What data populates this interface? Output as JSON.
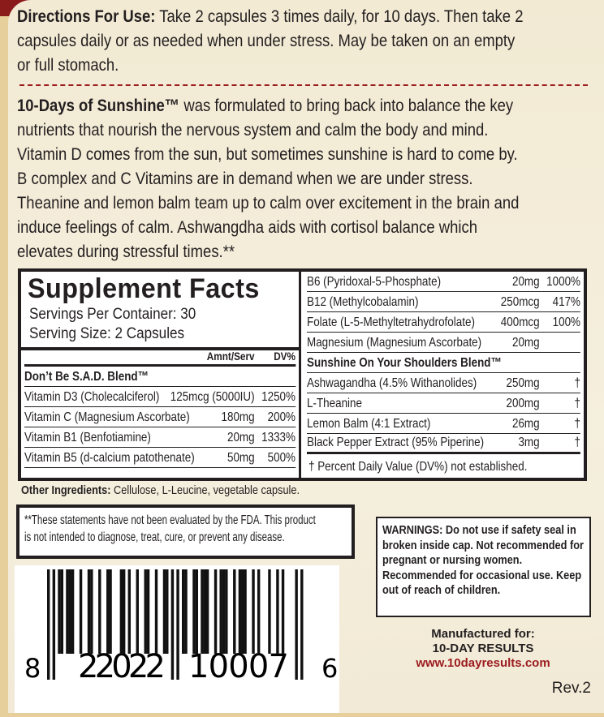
{
  "directions": {
    "label": "Directions For Use:",
    "lines": [
      " Take 2 capsules 3 times daily, for 10 days. Then take 2",
      "capsules daily or as needed when under stress.  May be taken on an empty",
      "or full stomach."
    ]
  },
  "description": {
    "brand": "10-Days of Sunshine™",
    "lines": [
      " was formulated to bring back into balance the key",
      "nutrients that nourish the nervous system and calm the body and mind.",
      "Vitamin D comes from the sun, but sometimes sunshine is hard to come by.",
      "B complex and C Vitamins are in demand when we are under stress.",
      "Theanine and lemon balm team up to calm over excitement in the brain and",
      "induce feelings of calm.  Ashwangdha aids with cortisol balance which",
      "elevates during stressful times.**"
    ]
  },
  "facts": {
    "title": "Supplement Facts",
    "servings": "Servings Per Container: 30",
    "serving_size": "Serving Size: 2 Capsules",
    "col_amount": "Amnt/Serv",
    "col_dv": "DV%",
    "blend1": "Don’t Be S.A.D. Blend™",
    "left_rows": [
      {
        "name": "Vitamin D3 (Cholecalciferol)",
        "amount": "125mcg (5000IU)",
        "dv": "1250%"
      },
      {
        "name": "Vitamin C (Magnesium Ascorbate)",
        "amount": "180mg",
        "dv": "200%"
      },
      {
        "name": "Vitamin B1 (Benfotiamine)",
        "amount": "20mg",
        "dv": "1333%"
      },
      {
        "name": "Vitamin B5 (d-calcium patothenate)",
        "amount": "50mg",
        "dv": "500%"
      }
    ],
    "right_rows": [
      {
        "name": "B6 (Pyridoxal-5-Phosphate)",
        "amount": "20mg",
        "dv": "1000%"
      },
      {
        "name": "B12 (Methylcobalamin)",
        "amount": "250mcg",
        "dv": "417%"
      },
      {
        "name": "Folate (L-5-Methyltetrahydrofolate)",
        "amount": "400mcg",
        "dv": "100%"
      },
      {
        "name": "Magnesium (Magnesium Ascorbate)",
        "amount": "20mg",
        "dv": ""
      }
    ],
    "blend2": "Sunshine On Your Shoulders Blend™",
    "blend2_rows": [
      {
        "name": "Ashwagandha (4.5% Withanolides)",
        "amount": "250mg",
        "dv": "†"
      },
      {
        "name": "L-Theanine",
        "amount": "200mg",
        "dv": "†"
      },
      {
        "name": "Lemon Balm (4:1 Extract)",
        "amount": "26mg",
        "dv": "†"
      },
      {
        "name": "Black Pepper Extract (95% Piperine)",
        "amount": "3mg",
        "dv": "†"
      }
    ],
    "footnote": "† Percent Daily Value (DV%) not established."
  },
  "other": {
    "label": "Other Ingredients:",
    "text": " Cellulose, L-Leucine, vegetable capsule."
  },
  "fda": {
    "line1": "**These statements have not been evaluated by the FDA.  This product",
    "line2": "is  not intended to diagnose, treat, cure, or prevent any disease."
  },
  "barcode": {
    "first": "8",
    "left": "22022",
    "right": "10007",
    "last": "6",
    "code": "822022100076"
  },
  "warnings": "WARNINGS: Do not use if safety seal in broken inside cap. Not recommended for pregnant or nursing women. Recommended for occasional use. Keep out of reach of children.",
  "manufacturer": {
    "label": "Manufactured for:",
    "name": "10-DAY RESULTS",
    "url": "www.10dayresults.com"
  },
  "revision": "Rev.2",
  "colors": {
    "accent": "#9b1b1e",
    "text": "#231f20",
    "background": "#f3ecd8"
  }
}
